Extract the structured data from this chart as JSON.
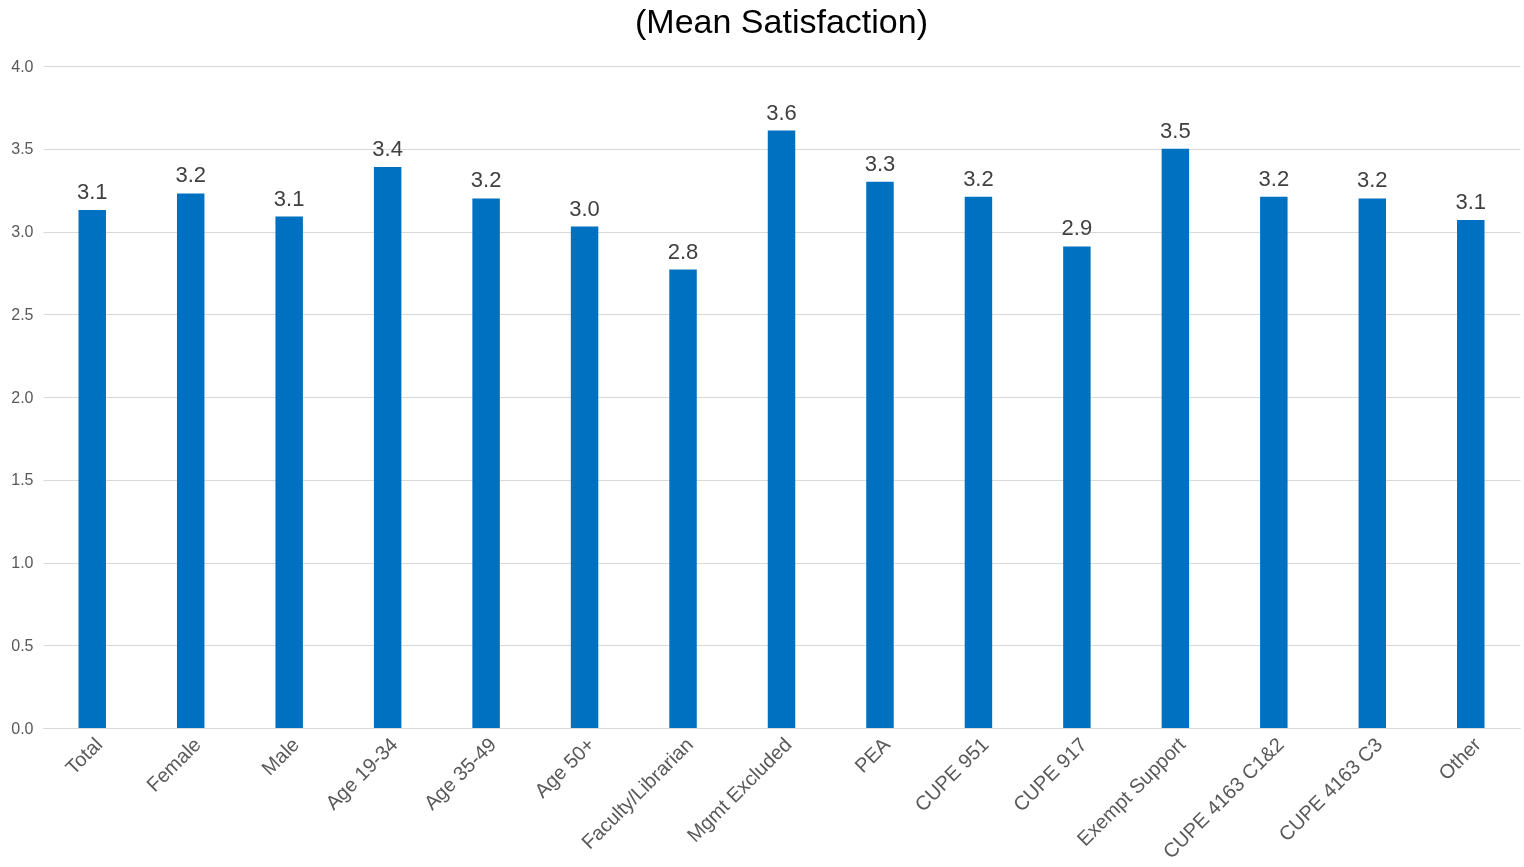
{
  "chart_data": {
    "type": "bar",
    "title": "(Mean Satisfaction)",
    "categories": [
      "Total",
      "Female",
      "Male",
      "Age 19-34",
      "Age 35-49",
      "Age 50+",
      "Faculty/Librarian",
      "Mgmt Excluded",
      "PEA",
      "CUPE 951",
      "CUPE 917",
      "Exempt Support",
      "CUPE 4163 C1&2",
      "CUPE 4163 C3",
      "Other"
    ],
    "values": [
      3.13,
      3.23,
      3.09,
      3.39,
      3.2,
      3.03,
      2.77,
      3.61,
      3.3,
      3.21,
      2.91,
      3.5,
      3.21,
      3.2,
      3.07
    ],
    "value_labels": [
      "3.1",
      "3.2",
      "3.1",
      "3.4",
      "3.2",
      "3.0",
      "2.8",
      "3.6",
      "3.3",
      "3.2",
      "2.9",
      "3.5",
      "3.2",
      "3.2",
      "3.1"
    ],
    "color": "#0070c0",
    "ylim": [
      0,
      4
    ],
    "yticks": [
      "0.0",
      "0.5",
      "1.0",
      "1.5",
      "2.0",
      "2.5",
      "3.0",
      "3.5",
      "4.0"
    ],
    "grid": "y"
  }
}
